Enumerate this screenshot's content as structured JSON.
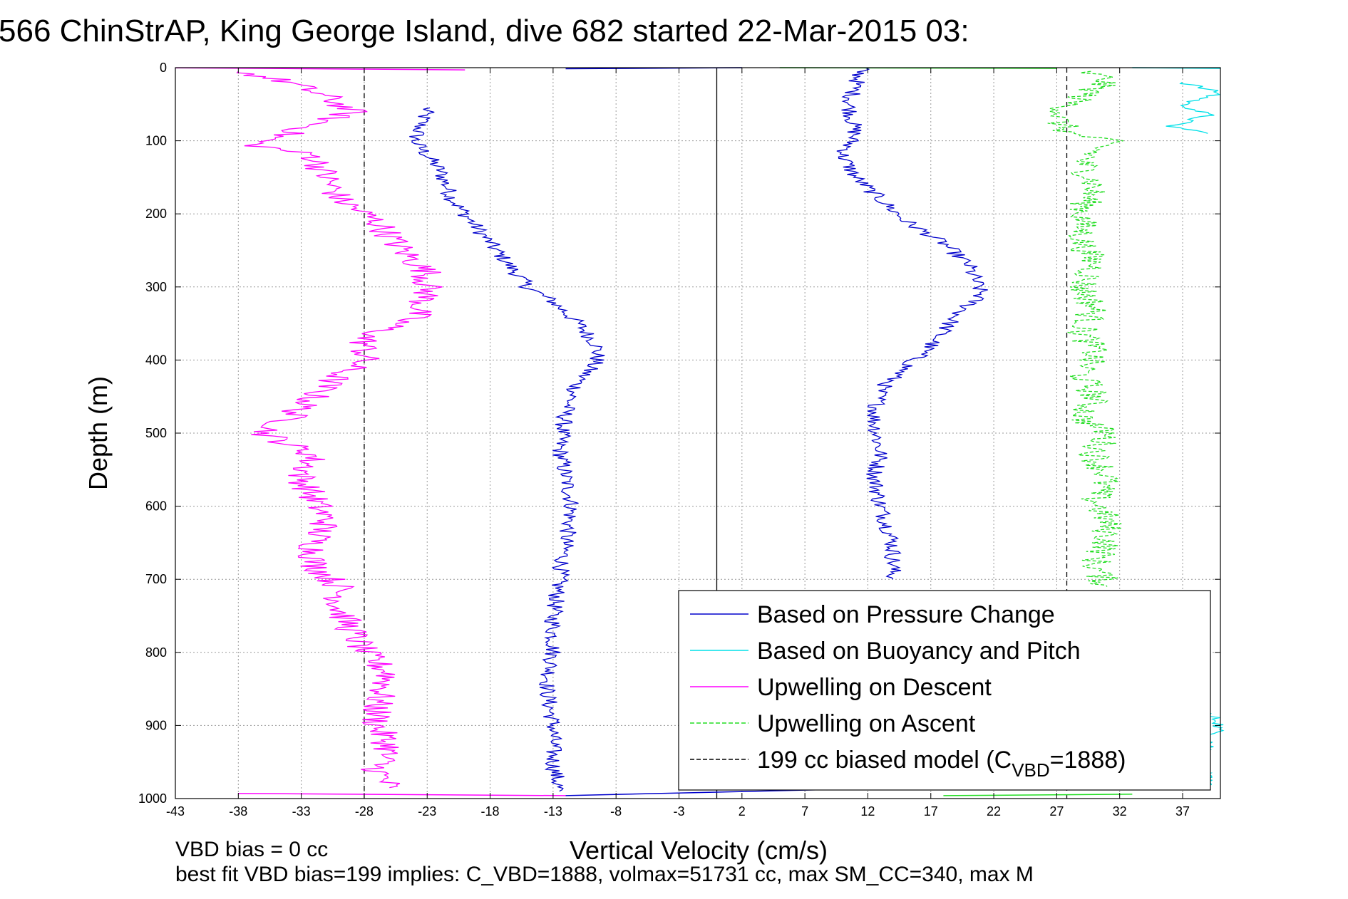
{
  "chart_data": {
    "type": "line",
    "title": "566 ChinStrAP, King George Island, dive 682 started 22-Mar-2015 03:",
    "xlabel": "Vertical Velocity (cm/s)",
    "ylabel": "Depth (m)",
    "xlim": [
      -43,
      40
    ],
    "ylim": [
      0,
      1000
    ],
    "y_reversed": true,
    "x_ticks": [
      -43,
      -38,
      -33,
      -28,
      -23,
      -18,
      -13,
      -8,
      -3,
      2,
      7,
      12,
      17,
      22,
      27,
      32,
      37
    ],
    "y_ticks": [
      0,
      100,
      200,
      300,
      400,
      500,
      600,
      700,
      800,
      900,
      1000
    ],
    "grid": true,
    "legend_position": "bottom-right",
    "vertical_reference_lines": [
      {
        "x": 0,
        "style": "solid",
        "color": "#000000"
      },
      {
        "x": -28,
        "style": "dashed",
        "color": "#000000"
      },
      {
        "x": 27.8,
        "style": "dashed",
        "color": "#000000"
      }
    ],
    "series": [
      {
        "name": "Based on Pressure Change",
        "color": "#0000cc",
        "style": "solid",
        "points": [
          [
            -23,
            55
          ],
          [
            -24,
            100
          ],
          [
            -22,
            140
          ],
          [
            -21,
            180
          ],
          [
            -19,
            220
          ],
          [
            -17,
            260
          ],
          [
            -15,
            300
          ],
          [
            -13,
            320
          ],
          [
            -11,
            350
          ],
          [
            -9.5,
            380
          ],
          [
            -9.5,
            400
          ],
          [
            -11,
            430
          ],
          [
            -12,
            470
          ],
          [
            -12.5,
            520
          ],
          [
            -12,
            560
          ],
          [
            -11.5,
            600
          ],
          [
            -12,
            650
          ],
          [
            -12.5,
            700
          ],
          [
            -13,
            750
          ],
          [
            -13,
            800
          ],
          [
            -13.5,
            850
          ],
          [
            -13,
            900
          ],
          [
            -13,
            950
          ],
          [
            -12.5,
            990
          ]
        ],
        "points_ascent": [
          [
            11.5,
            0
          ],
          [
            10.5,
            50
          ],
          [
            11,
            90
          ],
          [
            10,
            120
          ],
          [
            11,
            150
          ],
          [
            13,
            180
          ],
          [
            15,
            210
          ],
          [
            18,
            240
          ],
          [
            20,
            270
          ],
          [
            21,
            310
          ],
          [
            19,
            340
          ],
          [
            17,
            380
          ],
          [
            15,
            410
          ],
          [
            13,
            440
          ],
          [
            12.5,
            480
          ],
          [
            13,
            530
          ],
          [
            12.5,
            560
          ],
          [
            13,
            600
          ],
          [
            14,
            650
          ],
          [
            14,
            700
          ]
        ]
      },
      {
        "name": "Based on Buoyancy and Pitch",
        "color": "#00e0e8",
        "style": "solid",
        "points": [
          [
            37,
            20
          ],
          [
            40,
            35
          ],
          [
            37,
            50
          ],
          [
            39,
            65
          ],
          [
            36,
            80
          ],
          [
            39,
            90
          ]
        ],
        "points_bottom": [
          [
            38.5,
            880
          ],
          [
            40,
            895
          ],
          [
            38.5,
            955
          ],
          [
            39,
            985
          ]
        ]
      },
      {
        "name": "Upwelling on Descent",
        "color": "#ff00ff",
        "style": "solid",
        "points": [
          [
            -38,
            5
          ],
          [
            -34,
            20
          ],
          [
            -31,
            40
          ],
          [
            -29,
            60
          ],
          [
            -34,
            90
          ],
          [
            -37,
            105
          ],
          [
            -32,
            120
          ],
          [
            -31,
            150
          ],
          [
            -30,
            180
          ],
          [
            -27,
            210
          ],
          [
            -25,
            250
          ],
          [
            -23,
            280
          ],
          [
            -23,
            310
          ],
          [
            -24,
            340
          ],
          [
            -28,
            370
          ],
          [
            -28,
            400
          ],
          [
            -30,
            420
          ],
          [
            -32,
            450
          ],
          [
            -34,
            480
          ],
          [
            -36,
            500
          ],
          [
            -32,
            530
          ],
          [
            -33,
            560
          ],
          [
            -32,
            590
          ],
          [
            -31,
            620
          ],
          [
            -32,
            650
          ],
          [
            -32,
            680
          ],
          [
            -30,
            710
          ],
          [
            -30,
            740
          ],
          [
            -29,
            770
          ],
          [
            -28,
            800
          ],
          [
            -26,
            830
          ],
          [
            -27,
            870
          ],
          [
            -27,
            900
          ],
          [
            -26,
            930
          ],
          [
            -27,
            960
          ],
          [
            -26,
            985
          ]
        ]
      },
      {
        "name": "Upwelling on Ascent",
        "color": "#22dd22",
        "style": "dashed",
        "points": [
          [
            29,
            5
          ],
          [
            31,
            15
          ],
          [
            30,
            30
          ],
          [
            28,
            50
          ],
          [
            27,
            70
          ],
          [
            28,
            90
          ],
          [
            31,
            100
          ],
          [
            29,
            130
          ],
          [
            30,
            160
          ],
          [
            29,
            200
          ],
          [
            29,
            240
          ],
          [
            30,
            270
          ],
          [
            29,
            300
          ],
          [
            30,
            330
          ],
          [
            29,
            360
          ],
          [
            30,
            390
          ],
          [
            29,
            420
          ],
          [
            30,
            450
          ],
          [
            29,
            480
          ],
          [
            31,
            500
          ],
          [
            30,
            530
          ],
          [
            31,
            560
          ],
          [
            30,
            590
          ],
          [
            31,
            620
          ],
          [
            31,
            650
          ],
          [
            30,
            680
          ],
          [
            31,
            710
          ]
        ]
      },
      {
        "name": "199 cc biased model (C",
        "subscript": "VBD",
        "suffix": "=1888)",
        "color": "#000000",
        "style": "dashed"
      }
    ],
    "annotations": [
      "VBD bias = 0 cc",
      "best fit VBD bias=199 implies: C_VBD=1888, volmax=51731 cc, max SM_CC=340, max M"
    ]
  }
}
